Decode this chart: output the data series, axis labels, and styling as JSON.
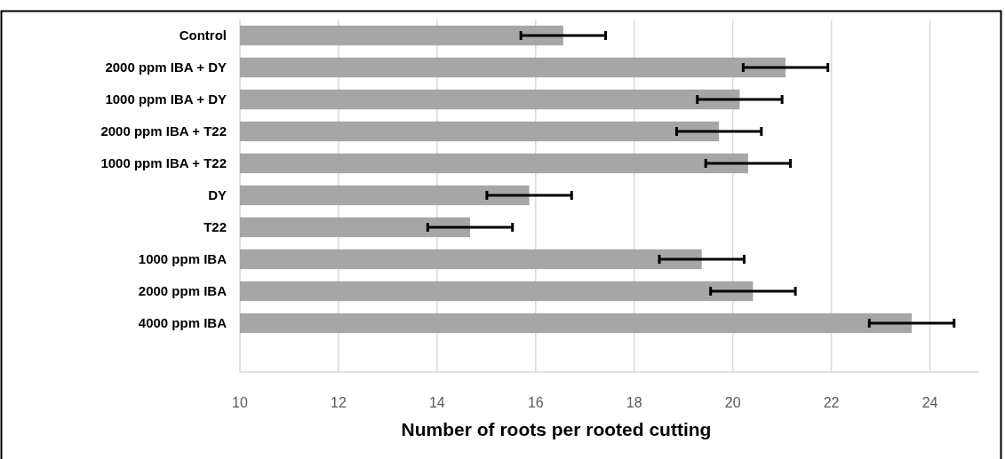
{
  "chart_data": {
    "type": "bar",
    "orientation": "horizontal",
    "xlabel": "Number of roots per rooted cutting",
    "categories": [
      "Control",
      "2000 ppm IBA + DY",
      "1000 ppm IBA + DY",
      "2000 ppm IBA + T22",
      "1000 ppm IBA + T22",
      "DY",
      "T22",
      "1000 ppm IBA",
      "2000 ppm IBA",
      "4000 ppm IBA"
    ],
    "values": [
      16.56,
      21.07,
      20.14,
      19.72,
      20.31,
      15.87,
      14.67,
      19.37,
      20.41,
      23.63
    ],
    "errors": [
      0.86,
      0.86,
      0.86,
      0.86,
      0.86,
      0.86,
      0.86,
      0.86,
      0.86,
      0.86
    ],
    "color": "#a6a6a6",
    "xlim": [
      10,
      25
    ],
    "xticks": [
      10,
      12,
      14,
      16,
      18,
      20,
      22,
      24
    ],
    "grid": "x"
  }
}
